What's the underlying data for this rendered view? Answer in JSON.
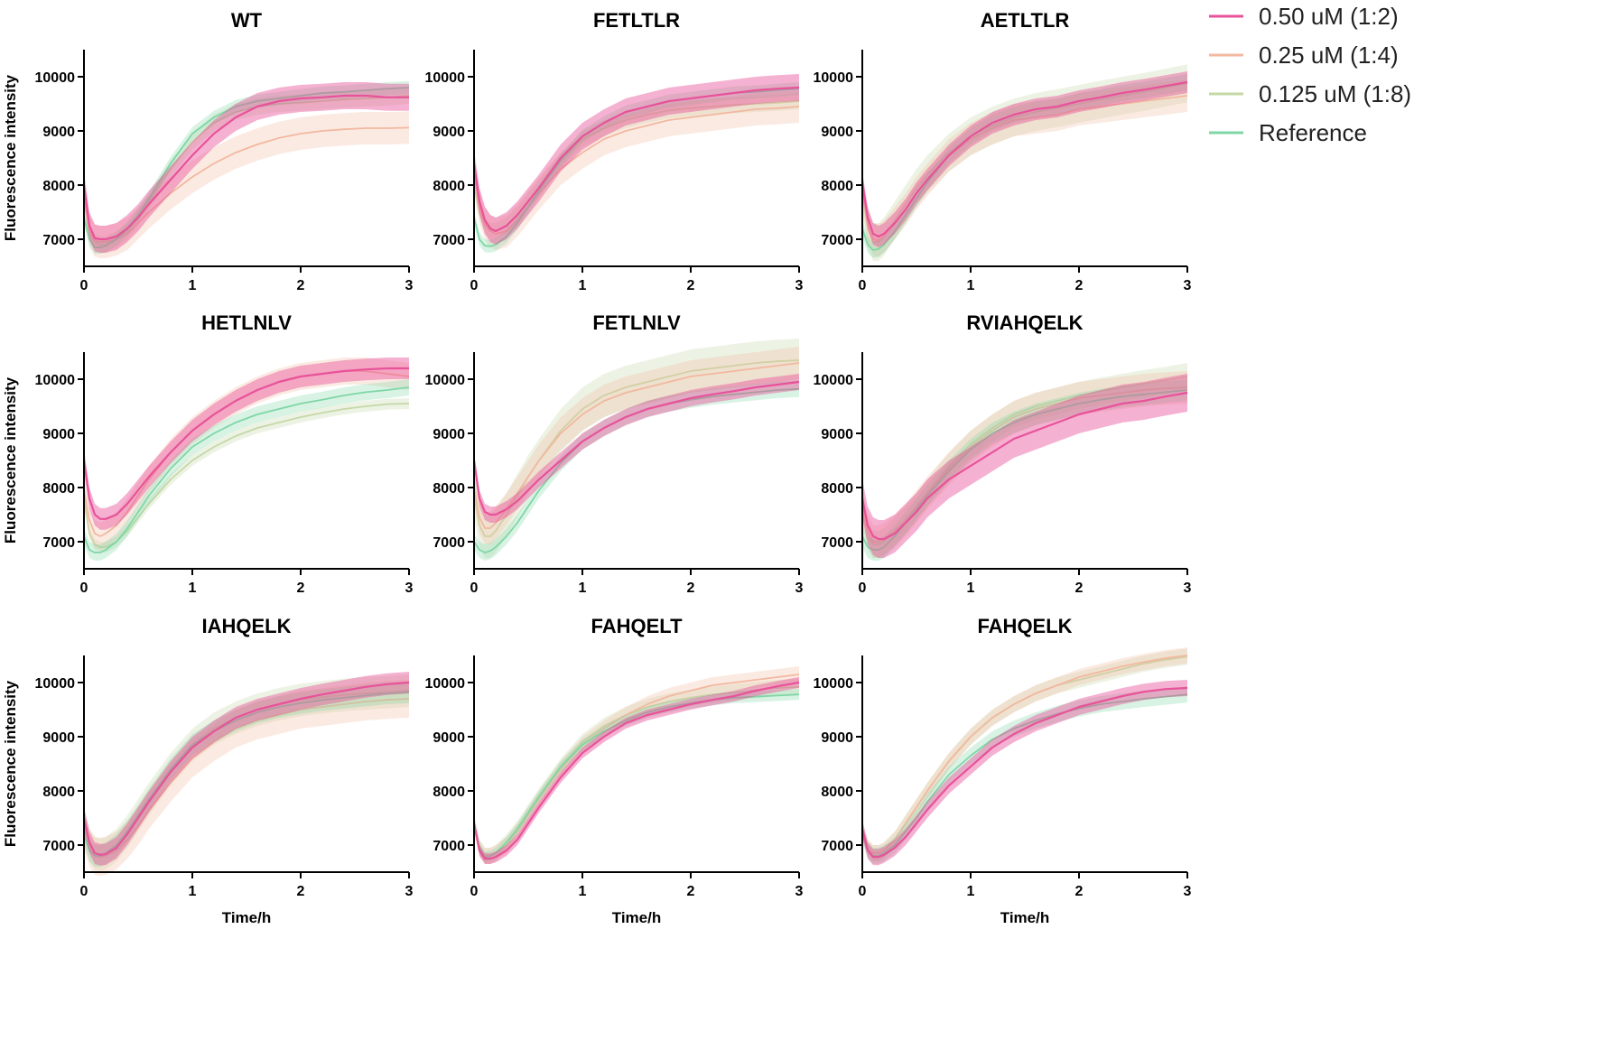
{
  "chart_data": {
    "type": "line",
    "xlabel": "Time/h",
    "ylabel": "Fluorescence intensity",
    "xlim": [
      0,
      3
    ],
    "ylim": [
      6500,
      10500
    ],
    "x_ticks": [
      "0",
      "1",
      "2",
      "3"
    ],
    "y_ticks": [
      "7000",
      "8000",
      "9000",
      "10000"
    ],
    "grid": false,
    "legend_position": "top-right",
    "series_meta": [
      {
        "name": "0.50 uM (1:2)",
        "color": "#e8529a"
      },
      {
        "name": "0.25 uM (1:4)",
        "color": "#f2b8a0"
      },
      {
        "name": "0.125 uM (1:8)",
        "color": "#c5d8a6"
      },
      {
        "name": "Reference",
        "color": "#7fd6a6"
      }
    ],
    "x": [
      0,
      0.05,
      0.1,
      0.15,
      0.2,
      0.3,
      0.4,
      0.5,
      0.6,
      0.8,
      1.0,
      1.2,
      1.4,
      1.6,
      1.8,
      2.0,
      2.2,
      2.4,
      2.6,
      2.8,
      3.0
    ],
    "panels": [
      {
        "title": "WT",
        "series": [
          {
            "values": [
              8000,
              7250,
              7020,
              7000,
              7000,
              7050,
              7200,
              7400,
              7650,
              8100,
              8550,
              8950,
              9250,
              9450,
              9550,
              9600,
              9620,
              9650,
              9650,
              9620,
              9620
            ],
            "band": 250
          },
          {
            "values": [
              7800,
              7150,
              6980,
              6950,
              6950,
              7000,
              7100,
              7300,
              7500,
              7850,
              8150,
              8400,
              8600,
              8750,
              8870,
              8950,
              9000,
              9030,
              9050,
              9050,
              9060
            ],
            "band": 300
          },
          {
            "values": [
              7750,
              7100,
              6950,
              6900,
              6900,
              7000,
              7150,
              7400,
              7700,
              8300,
              8800,
              9150,
              9350,
              9450,
              9500,
              9520,
              9550,
              9580,
              9600,
              9620,
              9650
            ],
            "band": 150
          },
          {
            "values": [
              7400,
              7000,
              6850,
              6850,
              6880,
              7000,
              7200,
              7450,
              7750,
              8400,
              8950,
              9250,
              9450,
              9550,
              9600,
              9650,
              9700,
              9720,
              9750,
              9780,
              9800
            ],
            "band": 120
          }
        ]
      },
      {
        "title": "FETLTLR",
        "series": [
          {
            "values": [
              8400,
              7700,
              7350,
              7200,
              7150,
              7250,
              7450,
              7700,
              7950,
              8500,
              8900,
              9150,
              9350,
              9450,
              9550,
              9600,
              9650,
              9700,
              9750,
              9780,
              9800
            ],
            "band": 250
          },
          {
            "values": [
              8200,
              7600,
              7300,
              7150,
              7100,
              7150,
              7350,
              7600,
              7850,
              8300,
              8600,
              8850,
              9000,
              9100,
              9200,
              9250,
              9300,
              9350,
              9400,
              9420,
              9450
            ],
            "band": 300
          },
          {
            "values": [
              8000,
              7500,
              7250,
              7150,
              7150,
              7250,
              7450,
              7700,
              7950,
              8450,
              8850,
              9050,
              9200,
              9300,
              9380,
              9420,
              9450,
              9480,
              9500,
              9520,
              9550
            ],
            "band": 150
          },
          {
            "values": [
              7400,
              7000,
              6880,
              6870,
              6900,
              7050,
              7300,
              7600,
              7900,
              8450,
              8900,
              9150,
              9350,
              9450,
              9550,
              9600,
              9650,
              9700,
              9720,
              9750,
              9780
            ],
            "band": 120
          }
        ]
      },
      {
        "title": "AETLTLR",
        "series": [
          {
            "values": [
              8050,
              7400,
              7100,
              7050,
              7100,
              7300,
              7550,
              7850,
              8100,
              8550,
              8900,
              9150,
              9300,
              9400,
              9450,
              9550,
              9620,
              9700,
              9760,
              9830,
              9900
            ],
            "band": 200
          },
          {
            "values": [
              7900,
              7250,
              7000,
              6980,
              7050,
              7300,
              7550,
              7850,
              8100,
              8550,
              8850,
              9050,
              9200,
              9250,
              9300,
              9400,
              9450,
              9500,
              9550,
              9600,
              9650
            ],
            "band": 300
          },
          {
            "values": [
              7850,
              7200,
              6950,
              6950,
              7050,
              7350,
              7650,
              7950,
              8200,
              8600,
              8900,
              9100,
              9250,
              9350,
              9420,
              9500,
              9580,
              9650,
              9720,
              9800,
              9880
            ],
            "band": 350
          },
          {
            "values": [
              7200,
              6900,
              6800,
              6820,
              6900,
              7150,
              7450,
              7750,
              8050,
              8550,
              8900,
              9150,
              9300,
              9400,
              9450,
              9550,
              9620,
              9700,
              9760,
              9830,
              9900
            ],
            "band": 150
          }
        ]
      },
      {
        "title": "HETLNLV",
        "series": [
          {
            "values": [
              8500,
              7800,
              7500,
              7420,
              7420,
              7500,
              7700,
              7950,
              8200,
              8650,
              9050,
              9350,
              9600,
              9800,
              9950,
              10050,
              10100,
              10150,
              10180,
              10200,
              10200
            ],
            "band": 200
          },
          {
            "values": [
              7950,
              7400,
              7150,
              7100,
              7150,
              7300,
              7550,
              7850,
              8150,
              8650,
              9050,
              9350,
              9600,
              9800,
              9950,
              10050,
              10100,
              10150,
              10150,
              10100,
              10050
            ],
            "band": 250
          },
          {
            "values": [
              7800,
              7150,
              6950,
              6900,
              6900,
              7000,
              7200,
              7450,
              7700,
              8150,
              8500,
              8750,
              8950,
              9100,
              9200,
              9300,
              9380,
              9450,
              9500,
              9540,
              9550
            ],
            "band": 100
          },
          {
            "values": [
              7100,
              6850,
              6800,
              6800,
              6850,
              7000,
              7250,
              7550,
              7850,
              8350,
              8750,
              9000,
              9200,
              9350,
              9450,
              9550,
              9620,
              9700,
              9760,
              9800,
              9850
            ],
            "band": 150
          }
        ]
      },
      {
        "title": "FETLNLV",
        "series": [
          {
            "values": [
              8500,
              7800,
              7550,
              7500,
              7500,
              7600,
              7750,
              7950,
              8150,
              8500,
              8850,
              9100,
              9300,
              9450,
              9550,
              9650,
              9720,
              9780,
              9850,
              9900,
              9950
            ],
            "band": 150
          },
          {
            "values": [
              8000,
              7450,
              7250,
              7250,
              7350,
              7600,
              7900,
              8200,
              8500,
              9000,
              9350,
              9600,
              9750,
              9850,
              9950,
              10050,
              10100,
              10150,
              10200,
              10250,
              10300
            ],
            "band": 300
          },
          {
            "values": [
              7900,
              7300,
              7100,
              7100,
              7200,
              7500,
              7850,
              8200,
              8500,
              9050,
              9450,
              9700,
              9850,
              9950,
              10050,
              10150,
              10200,
              10250,
              10300,
              10330,
              10350
            ],
            "band": 400
          },
          {
            "values": [
              7000,
              6850,
              6800,
              6830,
              6900,
              7100,
              7350,
              7650,
              7950,
              8450,
              8850,
              9100,
              9300,
              9450,
              9550,
              9620,
              9680,
              9720,
              9760,
              9800,
              9820
            ],
            "band": 150
          }
        ]
      },
      {
        "title": "RVIAHQELK",
        "series": [
          {
            "values": [
              7800,
              7300,
              7100,
              7050,
              7050,
              7150,
              7350,
              7550,
              7800,
              8150,
              8400,
              8650,
              8900,
              9050,
              9200,
              9350,
              9450,
              9550,
              9600,
              9680,
              9750
            ],
            "band": 350
          },
          {
            "values": [
              7700,
              7200,
              7000,
              7000,
              7050,
              7200,
              7400,
              7650,
              7900,
              8350,
              8750,
              9050,
              9300,
              9450,
              9550,
              9650,
              9700,
              9750,
              9800,
              9830,
              9850
            ],
            "band": 300
          },
          {
            "values": [
              7600,
              7100,
              6950,
              6950,
              7000,
              7200,
              7400,
              7650,
              7900,
              8400,
              8800,
              9100,
              9350,
              9500,
              9600,
              9700,
              9780,
              9850,
              9920,
              9980,
              10050
            ],
            "band": 250
          },
          {
            "values": [
              7100,
              6900,
              6850,
              6850,
              6900,
              7100,
              7350,
              7600,
              7850,
              8300,
              8700,
              9000,
              9200,
              9350,
              9450,
              9550,
              9620,
              9680,
              9720,
              9760,
              9800
            ],
            "band": 200
          }
        ]
      },
      {
        "title": "IAHQELK",
        "series": [
          {
            "values": [
              7500,
              7050,
              6850,
              6820,
              6830,
              6950,
              7200,
              7500,
              7800,
              8350,
              8800,
              9100,
              9350,
              9500,
              9600,
              9700,
              9780,
              9850,
              9920,
              9970,
              10000
            ],
            "band": 200
          },
          {
            "values": [
              7300,
              6950,
              6800,
              6780,
              6800,
              6900,
              7100,
              7350,
              7650,
              8150,
              8600,
              8900,
              9150,
              9300,
              9400,
              9500,
              9550,
              9600,
              9650,
              9680,
              9700
            ],
            "band": 350
          },
          {
            "values": [
              7400,
              7000,
              6850,
              6830,
              6850,
              7000,
              7250,
              7550,
              7850,
              8400,
              8850,
              9150,
              9350,
              9500,
              9600,
              9680,
              9730,
              9770,
              9800,
              9820,
              9850
            ],
            "band": 300
          },
          {
            "values": [
              7200,
              6900,
              6800,
              6800,
              6850,
              7000,
              7250,
              7550,
              7850,
              8400,
              8850,
              9100,
              9300,
              9450,
              9550,
              9620,
              9680,
              9720,
              9760,
              9800,
              9820
            ],
            "band": 200
          }
        ]
      },
      {
        "title": "FAHQELT",
        "series": [
          {
            "values": [
              7400,
              6900,
              6750,
              6750,
              6780,
              6900,
              7100,
              7400,
              7700,
              8250,
              8700,
              9000,
              9250,
              9400,
              9500,
              9600,
              9680,
              9750,
              9850,
              9930,
              10000
            ],
            "band": 100
          },
          {
            "values": [
              7400,
              6950,
              6800,
              6800,
              6850,
              7000,
              7250,
              7550,
              7850,
              8400,
              8850,
              9150,
              9400,
              9600,
              9750,
              9850,
              9950,
              10000,
              10050,
              10100,
              10150
            ],
            "band": 150
          },
          {
            "values": [
              7400,
              6950,
              6800,
              6800,
              6850,
              7050,
              7300,
              7600,
              7900,
              8450,
              8900,
              9200,
              9400,
              9550,
              9650,
              9720,
              9780,
              9820,
              9860,
              9900,
              9920
            ],
            "band": 150
          },
          {
            "values": [
              7400,
              6950,
              6780,
              6800,
              6850,
              7050,
              7300,
              7600,
              7900,
              8450,
              8850,
              9100,
              9300,
              9450,
              9550,
              9620,
              9680,
              9720,
              9740,
              9760,
              9780
            ],
            "band": 100
          }
        ]
      },
      {
        "title": "FAHQELK",
        "series": [
          {
            "values": [
              7300,
              6900,
              6780,
              6780,
              6820,
              6950,
              7150,
              7400,
              7650,
              8100,
              8450,
              8800,
              9050,
              9250,
              9400,
              9550,
              9650,
              9750,
              9830,
              9880,
              9900
            ],
            "band": 150
          },
          {
            "values": [
              7300,
              6950,
              6850,
              6850,
              6900,
              7100,
              7400,
              7700,
              8000,
              8550,
              9000,
              9350,
              9600,
              9800,
              9950,
              10100,
              10200,
              10300,
              10380,
              10450,
              10500
            ],
            "band": 150
          },
          {
            "values": [
              7300,
              6950,
              6850,
              6850,
              6900,
              7100,
              7400,
              7700,
              8000,
              8550,
              9000,
              9350,
              9600,
              9800,
              9950,
              10050,
              10150,
              10250,
              10350,
              10420,
              10480
            ],
            "band": 150
          },
          {
            "values": [
              7200,
              6900,
              6800,
              6800,
              6850,
              7000,
              7250,
              7500,
              7800,
              8300,
              8650,
              8950,
              9150,
              9300,
              9420,
              9520,
              9600,
              9650,
              9700,
              9740,
              9780
            ],
            "band": 150
          }
        ]
      }
    ]
  }
}
